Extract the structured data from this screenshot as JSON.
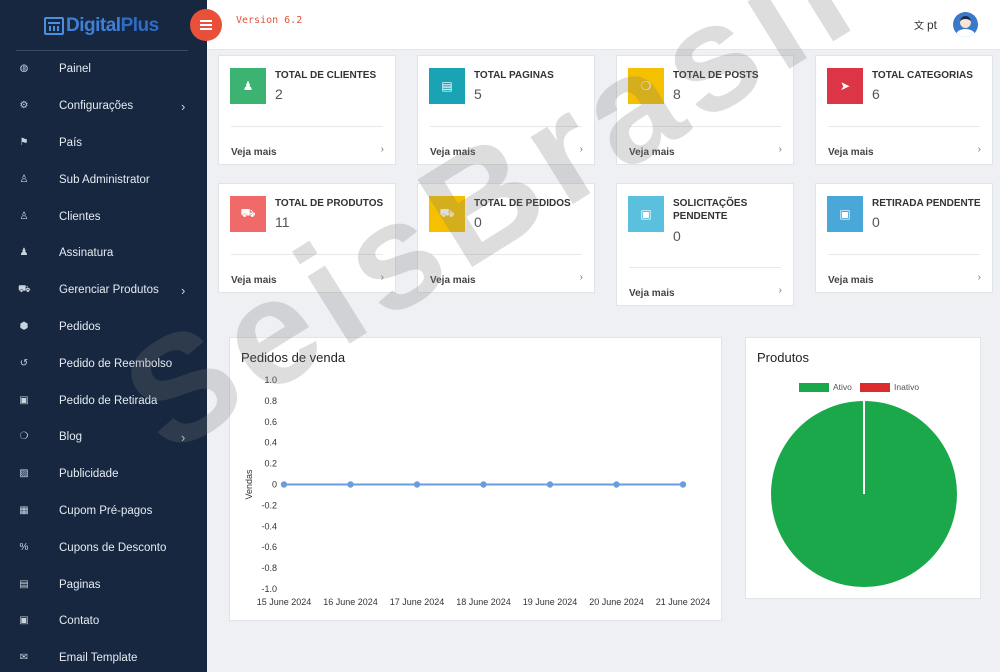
{
  "brand": {
    "part1": "Digital",
    "part2": "Plus"
  },
  "header": {
    "version": "Version 6.2",
    "language": "pt"
  },
  "sidebar": {
    "items": [
      {
        "label": "Painel",
        "icon": "dashboard-icon",
        "glyph": "◍",
        "has_submenu": false
      },
      {
        "label": "Configurações",
        "icon": "gears-icon",
        "glyph": "⚙",
        "has_submenu": true
      },
      {
        "label": "País",
        "icon": "flag-icon",
        "glyph": "⚑",
        "has_submenu": false
      },
      {
        "label": "Sub Administrator",
        "icon": "user-outline-icon",
        "glyph": "♙",
        "has_submenu": false
      },
      {
        "label": "Clientes",
        "icon": "user-outline-icon",
        "glyph": "♙",
        "has_submenu": false
      },
      {
        "label": "Assinatura",
        "icon": "user-icon",
        "glyph": "♟",
        "has_submenu": false
      },
      {
        "label": "Gerenciar Produtos",
        "icon": "cart-icon",
        "glyph": "⛟",
        "has_submenu": true
      },
      {
        "label": "Pedidos",
        "icon": "cube-icon",
        "glyph": "⬢",
        "has_submenu": false
      },
      {
        "label": "Pedido de Reembolso",
        "icon": "undo-icon",
        "glyph": "↺",
        "has_submenu": false
      },
      {
        "label": "Pedido de Retirada",
        "icon": "money-icon",
        "glyph": "▣",
        "has_submenu": false
      },
      {
        "label": "Blog",
        "icon": "comments-icon",
        "glyph": "❍",
        "has_submenu": true
      },
      {
        "label": "Publicidade",
        "icon": "image-icon",
        "glyph": "▨",
        "has_submenu": false
      },
      {
        "label": "Cupom Pré-pagos",
        "icon": "gift-icon",
        "glyph": "▦",
        "has_submenu": false
      },
      {
        "label": "Cupons de Desconto",
        "icon": "percent-icon",
        "glyph": "%",
        "has_submenu": false
      },
      {
        "label": "Paginas",
        "icon": "file-icon",
        "glyph": "▤",
        "has_submenu": false
      },
      {
        "label": "Contato",
        "icon": "contact-icon",
        "glyph": "▣",
        "has_submenu": false
      },
      {
        "label": "Email Template",
        "icon": "envelope-icon",
        "glyph": "✉",
        "has_submenu": false
      }
    ]
  },
  "cards": [
    {
      "title": "TOTAL DE CLIENTES",
      "value": "2",
      "more": "Veja mais",
      "color": "#3cb371",
      "icon": "user-icon",
      "glyph": "♟"
    },
    {
      "title": "TOTAL PAGINAS",
      "value": "5",
      "more": "Veja mais",
      "color": "#1aa3b5",
      "icon": "file-icon",
      "glyph": "▤"
    },
    {
      "title": "TOTAL DE POSTS",
      "value": "8",
      "more": "Veja mais",
      "color": "#f5c000",
      "icon": "comments-icon",
      "glyph": "❍"
    },
    {
      "title": "TOTAL CATEGORIAS",
      "value": "6",
      "more": "Veja mais",
      "color": "#dc3545",
      "icon": "location-arrow-icon",
      "glyph": "➤"
    },
    {
      "title": "TOTAL DE PRODUTOS",
      "value": "11",
      "more": "Veja mais",
      "color": "#f06a6a",
      "icon": "cart-icon",
      "glyph": "⛟"
    },
    {
      "title": "TOTAL DE PEDIDOS",
      "value": "0",
      "more": "Veja mais",
      "color": "#f5c000",
      "icon": "cart-icon",
      "glyph": "⛟"
    },
    {
      "title": "SOLICITAÇÕES PENDENTE",
      "value": "0",
      "more": "Veja mais",
      "color": "#5bc0de",
      "icon": "money-icon",
      "glyph": "▣"
    },
    {
      "title": "RETIRADA PENDENTE",
      "value": "0",
      "more": "Veja mais",
      "color": "#4aa8d8",
      "icon": "money-icon",
      "glyph": "▣"
    }
  ],
  "sales_panel": {
    "title": "Pedidos de venda"
  },
  "products_panel": {
    "title": "Produtos"
  },
  "watermark": {
    "text": "SeisBrasil"
  },
  "chart_data": [
    {
      "type": "line",
      "title": "",
      "xlabel": "",
      "ylabel": "Vendas",
      "x": [
        "15 June 2024",
        "16 June 2024",
        "17 June 2024",
        "18 June 2024",
        "19 June 2024",
        "20 June 2024",
        "21 June 2024"
      ],
      "series": [
        {
          "values": [
            0,
            0,
            0,
            0,
            0,
            0,
            0
          ],
          "color": "#6b9ddc"
        }
      ],
      "ylim": [
        -1.0,
        1.0
      ],
      "yticks": [
        "1.0",
        "0.8",
        "0.6",
        "0.4",
        "0.2",
        "0",
        "-0.2",
        "-0.4",
        "-0.6",
        "-0.8",
        "-1.0"
      ],
      "grid": false
    },
    {
      "type": "pie",
      "labels": [
        "Ativo",
        "Inativo"
      ],
      "values": [
        11,
        0
      ],
      "colors": [
        "#1aa84a",
        "#dc2b2b"
      ],
      "legend": "top"
    }
  ]
}
